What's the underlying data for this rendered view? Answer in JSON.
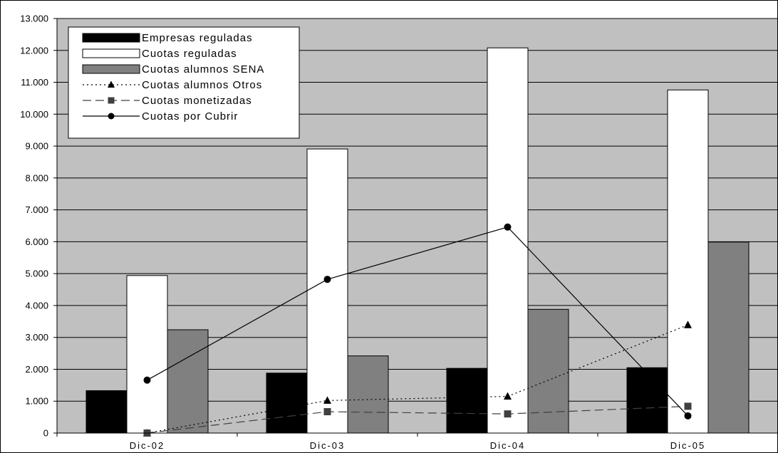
{
  "chart_data": {
    "type": "bar",
    "categories": [
      "Dic-02",
      "Dic-03",
      "Dic-04",
      "Dic-05"
    ],
    "ylim": [
      0,
      13000
    ],
    "yticks": [
      0,
      1000,
      2000,
      3000,
      4000,
      5000,
      6000,
      7000,
      8000,
      9000,
      10000,
      11000,
      12000,
      13000
    ],
    "ytick_labels": [
      "0",
      "1.000",
      "2.000",
      "3.000",
      "4.000",
      "5.000",
      "6.000",
      "7.000",
      "8.000",
      "9.000",
      "10.000",
      "11.000",
      "12.000",
      "13.000"
    ],
    "grid": true,
    "legend_placement": "top-left",
    "plot_background": "#c0c0c0",
    "bar_series": [
      {
        "name": "Empresas reguladas",
        "values": [
          1330,
          1880,
          2030,
          2050
        ],
        "color": "#000000"
      },
      {
        "name": "Cuotas reguladas",
        "values": [
          4940,
          8910,
          12080,
          10760
        ],
        "color": "#ffffff"
      },
      {
        "name": "Cuotas alumnos SENA",
        "values": [
          3240,
          2420,
          3880,
          5990
        ],
        "color": "#808080"
      }
    ],
    "line_series": [
      {
        "name": "Cuotas alumnos  Otros",
        "values": [
          0,
          1020,
          1150,
          3390
        ],
        "marker": "triangle",
        "dash": "dotted",
        "color": "#000000"
      },
      {
        "name": "Cuotas monetizadas",
        "values": [
          0,
          670,
          600,
          840
        ],
        "marker": "square",
        "dash": "dashed",
        "color": "#404040"
      },
      {
        "name": "Cuotas por Cubrir",
        "values": [
          1660,
          4820,
          6460,
          540
        ],
        "marker": "circle",
        "dash": "solid",
        "color": "#000000"
      }
    ]
  }
}
